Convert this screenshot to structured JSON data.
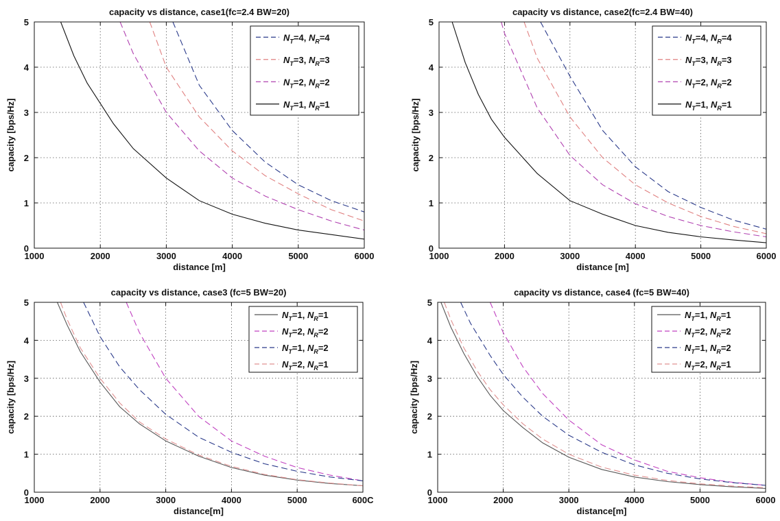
{
  "chart_data": [
    {
      "type": "line",
      "title": "capacity vs distance, case1(fc=2.4 BW=20)",
      "xlabel": "distance [m]",
      "ylabel": "capacity [bps/Hz]",
      "xlim": [
        1000,
        6000
      ],
      "ylim": [
        0,
        5
      ],
      "xticks": [
        "1000",
        "2000",
        "3000",
        "4000",
        "5000",
        "6000"
      ],
      "yticks": [
        "0",
        "1",
        "2",
        "3",
        "4",
        "5"
      ],
      "grid": true,
      "legend_position": "top-right",
      "series": [
        {
          "name": "N_T=4, N_R=4",
          "color": "#2a3a8a",
          "dash": "dashed",
          "x": [
            3100,
            3500,
            4000,
            4500,
            5000,
            5500,
            6000
          ],
          "y": [
            5.0,
            3.6,
            2.6,
            1.9,
            1.4,
            1.05,
            0.8
          ]
        },
        {
          "name": "N_T=3, N_R=3",
          "color": "#e08080",
          "dash": "dashed",
          "x": [
            2750,
            3000,
            3500,
            4000,
            4500,
            5000,
            5500,
            6000
          ],
          "y": [
            5.0,
            4.0,
            2.9,
            2.15,
            1.6,
            1.2,
            0.85,
            0.6
          ]
        },
        {
          "name": "N_T=2, N_R=2",
          "color": "#b040b0",
          "dash": "dashed",
          "x": [
            2300,
            2500,
            3000,
            3500,
            4000,
            4500,
            5000,
            5500,
            6000
          ],
          "y": [
            5.0,
            4.3,
            3.0,
            2.15,
            1.55,
            1.15,
            0.85,
            0.6,
            0.4
          ]
        },
        {
          "name": "N_T=1, N_R=1",
          "color": "#111111",
          "dash": "solid",
          "x": [
            1400,
            1600,
            1800,
            2000,
            2200,
            2500,
            3000,
            3500,
            4000,
            4500,
            5000,
            5500,
            6000
          ],
          "y": [
            5.0,
            4.25,
            3.65,
            3.2,
            2.75,
            2.2,
            1.55,
            1.05,
            0.75,
            0.55,
            0.4,
            0.3,
            0.2
          ]
        }
      ]
    },
    {
      "type": "line",
      "title": "capacity vs distance, case2(fc=2.4 BW=40)",
      "xlabel": "distance [m]",
      "ylabel": "capacity [bps/Hz]",
      "xlim": [
        1000,
        6000
      ],
      "ylim": [
        0,
        5
      ],
      "xticks": [
        "1000",
        "2000",
        "3000",
        "4000",
        "5000",
        "6000"
      ],
      "yticks": [
        "0",
        "1",
        "2",
        "3",
        "4",
        "5"
      ],
      "grid": true,
      "legend_position": "top-right",
      "series": [
        {
          "name": "N_T=4, N_R=4",
          "color": "#2a3a8a",
          "dash": "dashed",
          "x": [
            2550,
            3000,
            3500,
            4000,
            4500,
            5000,
            5500,
            6000
          ],
          "y": [
            5.0,
            3.8,
            2.6,
            1.8,
            1.25,
            0.9,
            0.62,
            0.42
          ]
        },
        {
          "name": "N_T=3, N_R=3",
          "color": "#e08080",
          "dash": "dashed",
          "x": [
            2300,
            2500,
            3000,
            3500,
            4000,
            4500,
            5000,
            5500,
            6000
          ],
          "y": [
            5.0,
            4.2,
            2.9,
            2.0,
            1.4,
            1.0,
            0.7,
            0.48,
            0.32
          ]
        },
        {
          "name": "N_T=2, N_R=2",
          "color": "#b040b0",
          "dash": "dashed",
          "x": [
            1950,
            2000,
            2500,
            3000,
            3500,
            4000,
            4500,
            5000,
            5500,
            6000
          ],
          "y": [
            5.0,
            4.75,
            3.1,
            2.05,
            1.4,
            0.98,
            0.7,
            0.5,
            0.36,
            0.25
          ]
        },
        {
          "name": "N_T=1, N_R=1",
          "color": "#111111",
          "dash": "solid",
          "x": [
            1200,
            1400,
            1600,
            1800,
            2000,
            2500,
            3000,
            3500,
            4000,
            4500,
            5000,
            5500,
            6000
          ],
          "y": [
            5.0,
            4.1,
            3.4,
            2.85,
            2.45,
            1.65,
            1.05,
            0.75,
            0.5,
            0.35,
            0.25,
            0.18,
            0.12
          ]
        }
      ]
    },
    {
      "type": "line",
      "title": "capacity vs distance, case3 (fc=5 BW=20)",
      "xlabel": "distance[m]",
      "ylabel": "capacity [bps/Hz]",
      "xlim": [
        1000,
        6000
      ],
      "ylim": [
        0,
        5
      ],
      "xticks": [
        "1000",
        "2000",
        "3000",
        "4000",
        "5000",
        "600C"
      ],
      "yticks": [
        "0",
        "1",
        "2",
        "3",
        "4",
        "5"
      ],
      "grid": true,
      "legend_position": "top-right",
      "series": [
        {
          "name": "N_T=1, N_R=1",
          "color": "#555555",
          "dash": "solid",
          "x": [
            1350,
            1500,
            1700,
            2000,
            2300,
            2600,
            3000,
            3500,
            4000,
            4500,
            5000,
            5500,
            6000
          ],
          "y": [
            5.0,
            4.4,
            3.7,
            2.9,
            2.25,
            1.8,
            1.35,
            0.95,
            0.65,
            0.45,
            0.32,
            0.23,
            0.17
          ]
        },
        {
          "name": "N_T=2, N_R=2",
          "color": "#c040c0",
          "dash": "dashed",
          "x": [
            2400,
            2600,
            3000,
            3500,
            4000,
            4500,
            5000,
            5500,
            6000
          ],
          "y": [
            5.0,
            4.2,
            3.0,
            2.0,
            1.35,
            0.95,
            0.65,
            0.45,
            0.3
          ]
        },
        {
          "name": "N_T=1, N_R=2",
          "color": "#2a3a8a",
          "dash": "dashed",
          "x": [
            1750,
            2000,
            2300,
            2600,
            3000,
            3500,
            4000,
            4500,
            5000,
            5500,
            6000
          ],
          "y": [
            5.0,
            4.1,
            3.3,
            2.7,
            2.05,
            1.45,
            1.05,
            0.75,
            0.55,
            0.4,
            0.3
          ]
        },
        {
          "name": "N_T=2, N_R=1",
          "color": "#e09090",
          "dash": "dashed",
          "x": [
            1400,
            1500,
            1700,
            2000,
            2300,
            2600,
            3000,
            3500,
            4000,
            4500,
            5000,
            5500,
            6000
          ],
          "y": [
            5.0,
            4.55,
            3.8,
            3.0,
            2.35,
            1.85,
            1.4,
            0.98,
            0.68,
            0.47,
            0.33,
            0.24,
            0.17
          ]
        }
      ]
    },
    {
      "type": "line",
      "title": "capacity vs distance, case4 (fc=5 BW=40)",
      "xlabel": "distance[m]",
      "ylabel": "capacity [bps/Hz]",
      "xlim": [
        1000,
        6000
      ],
      "ylim": [
        0,
        5
      ],
      "xticks": [
        "1000",
        "2000",
        "3000",
        "4000",
        "5000",
        "6000"
      ],
      "yticks": [
        "0",
        "1",
        "2",
        "3",
        "4",
        "5"
      ],
      "grid": true,
      "legend_position": "top-right",
      "series": [
        {
          "name": "N_T=1, N_R=1",
          "color": "#555555",
          "dash": "solid",
          "x": [
            1050,
            1200,
            1400,
            1600,
            1800,
            2000,
            2300,
            2600,
            3000,
            3500,
            4000,
            4500,
            5000,
            5500,
            6000
          ],
          "y": [
            5.0,
            4.35,
            3.65,
            3.05,
            2.55,
            2.15,
            1.7,
            1.3,
            0.92,
            0.6,
            0.4,
            0.28,
            0.2,
            0.14,
            0.1
          ]
        },
        {
          "name": "N_T=2, N_R=2",
          "color": "#c040c0",
          "dash": "dashed",
          "x": [
            1800,
            2000,
            2300,
            2600,
            3000,
            3500,
            4000,
            4500,
            5000,
            5500,
            6000
          ],
          "y": [
            5.0,
            4.2,
            3.3,
            2.6,
            1.9,
            1.25,
            0.85,
            0.55,
            0.38,
            0.26,
            0.18
          ]
        },
        {
          "name": "N_T=1, N_R=2",
          "color": "#2a3a8a",
          "dash": "dashed",
          "x": [
            1350,
            1500,
            1800,
            2000,
            2300,
            2600,
            3000,
            3500,
            4000,
            4500,
            5000,
            5500,
            6000
          ],
          "y": [
            5.0,
            4.45,
            3.6,
            3.1,
            2.5,
            2.0,
            1.5,
            1.05,
            0.72,
            0.5,
            0.35,
            0.25,
            0.18
          ]
        },
        {
          "name": "N_T=2, N_R=1",
          "color": "#e09090",
          "dash": "dashed",
          "x": [
            1100,
            1200,
            1400,
            1600,
            1800,
            2000,
            2300,
            2600,
            3000,
            3500,
            4000,
            4500,
            5000,
            5500,
            6000
          ],
          "y": [
            5.0,
            4.55,
            3.8,
            3.2,
            2.7,
            2.3,
            1.8,
            1.4,
            1.0,
            0.66,
            0.45,
            0.31,
            0.22,
            0.16,
            0.12
          ]
        }
      ]
    }
  ]
}
